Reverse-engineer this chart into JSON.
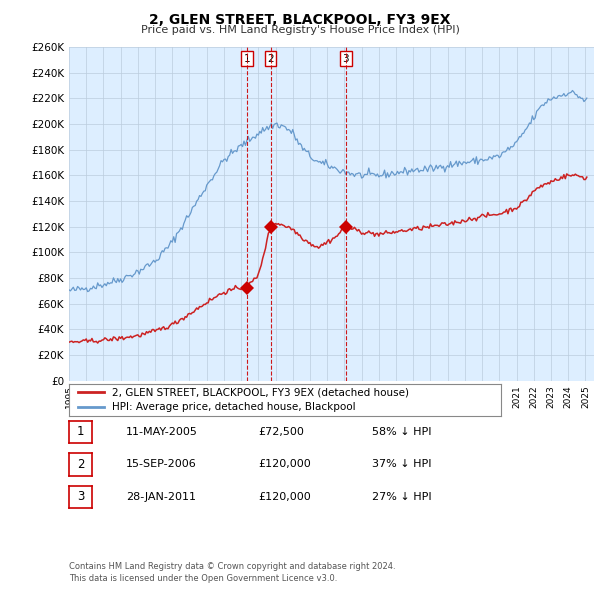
{
  "title": "2, GLEN STREET, BLACKPOOL, FY3 9EX",
  "subtitle": "Price paid vs. HM Land Registry's House Price Index (HPI)",
  "ylim": [
    0,
    260000
  ],
  "yticks": [
    0,
    20000,
    40000,
    60000,
    80000,
    100000,
    120000,
    140000,
    160000,
    180000,
    200000,
    220000,
    240000,
    260000
  ],
  "ytick_labels": [
    "£0",
    "£20K",
    "£40K",
    "£60K",
    "£80K",
    "£100K",
    "£120K",
    "£140K",
    "£160K",
    "£180K",
    "£200K",
    "£220K",
    "£240K",
    "£260K"
  ],
  "sale_dates": [
    2005.36,
    2006.71,
    2011.07
  ],
  "sale_prices": [
    72500,
    120000,
    120000
  ],
  "sale_labels": [
    "1",
    "2",
    "3"
  ],
  "sale_marker_color": "#cc0000",
  "hpi_line_color": "#6699cc",
  "price_line_color": "#cc2222",
  "chart_bg_color": "#ddeeff",
  "legend_label_red": "2, GLEN STREET, BLACKPOOL, FY3 9EX (detached house)",
  "legend_label_blue": "HPI: Average price, detached house, Blackpool",
  "table_rows": [
    [
      "1",
      "11-MAY-2005",
      "£72,500",
      "58% ↓ HPI"
    ],
    [
      "2",
      "15-SEP-2006",
      "£120,000",
      "37% ↓ HPI"
    ],
    [
      "3",
      "28-JAN-2011",
      "£120,000",
      "27% ↓ HPI"
    ]
  ],
  "footnote": "Contains HM Land Registry data © Crown copyright and database right 2024.\nThis data is licensed under the Open Government Licence v3.0.",
  "bg_color": "#ffffff",
  "grid_color": "#bbccdd"
}
